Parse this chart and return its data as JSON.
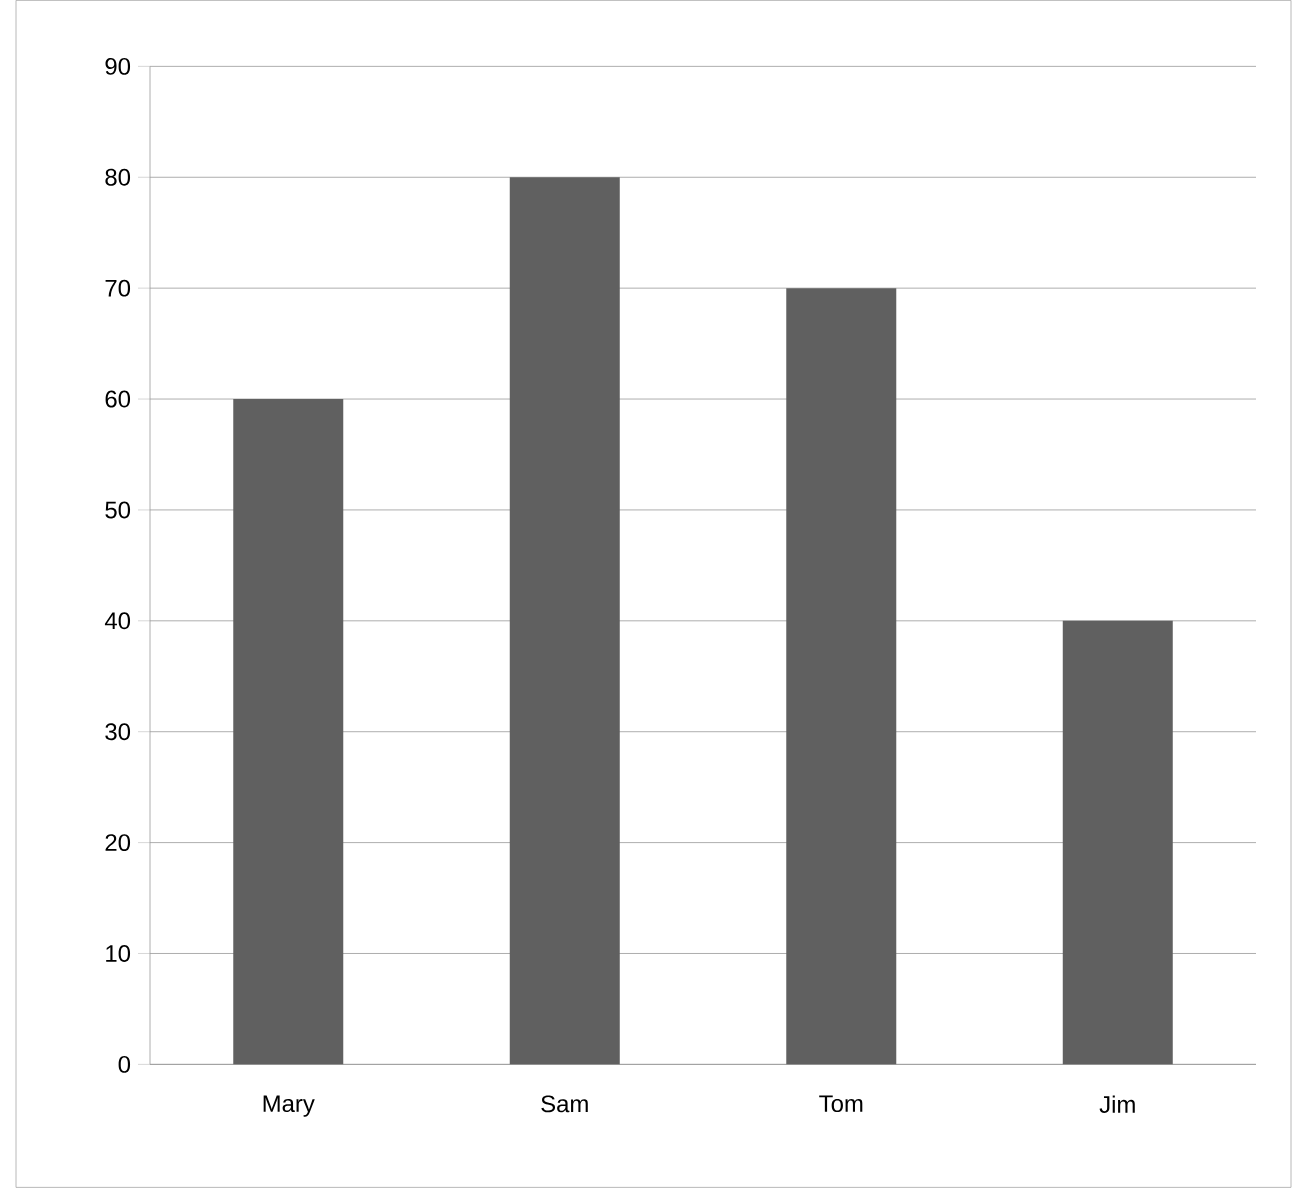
{
  "chart_data": {
    "type": "bar",
    "categories": [
      "Mary",
      "Sam",
      "Tom",
      "Jim"
    ],
    "values": [
      60,
      80,
      70,
      40
    ],
    "color": "#606060",
    "ylim": [
      0,
      90
    ],
    "yticks": [
      0,
      10,
      20,
      30,
      40,
      50,
      60,
      70,
      80,
      90
    ],
    "grid": "y"
  }
}
